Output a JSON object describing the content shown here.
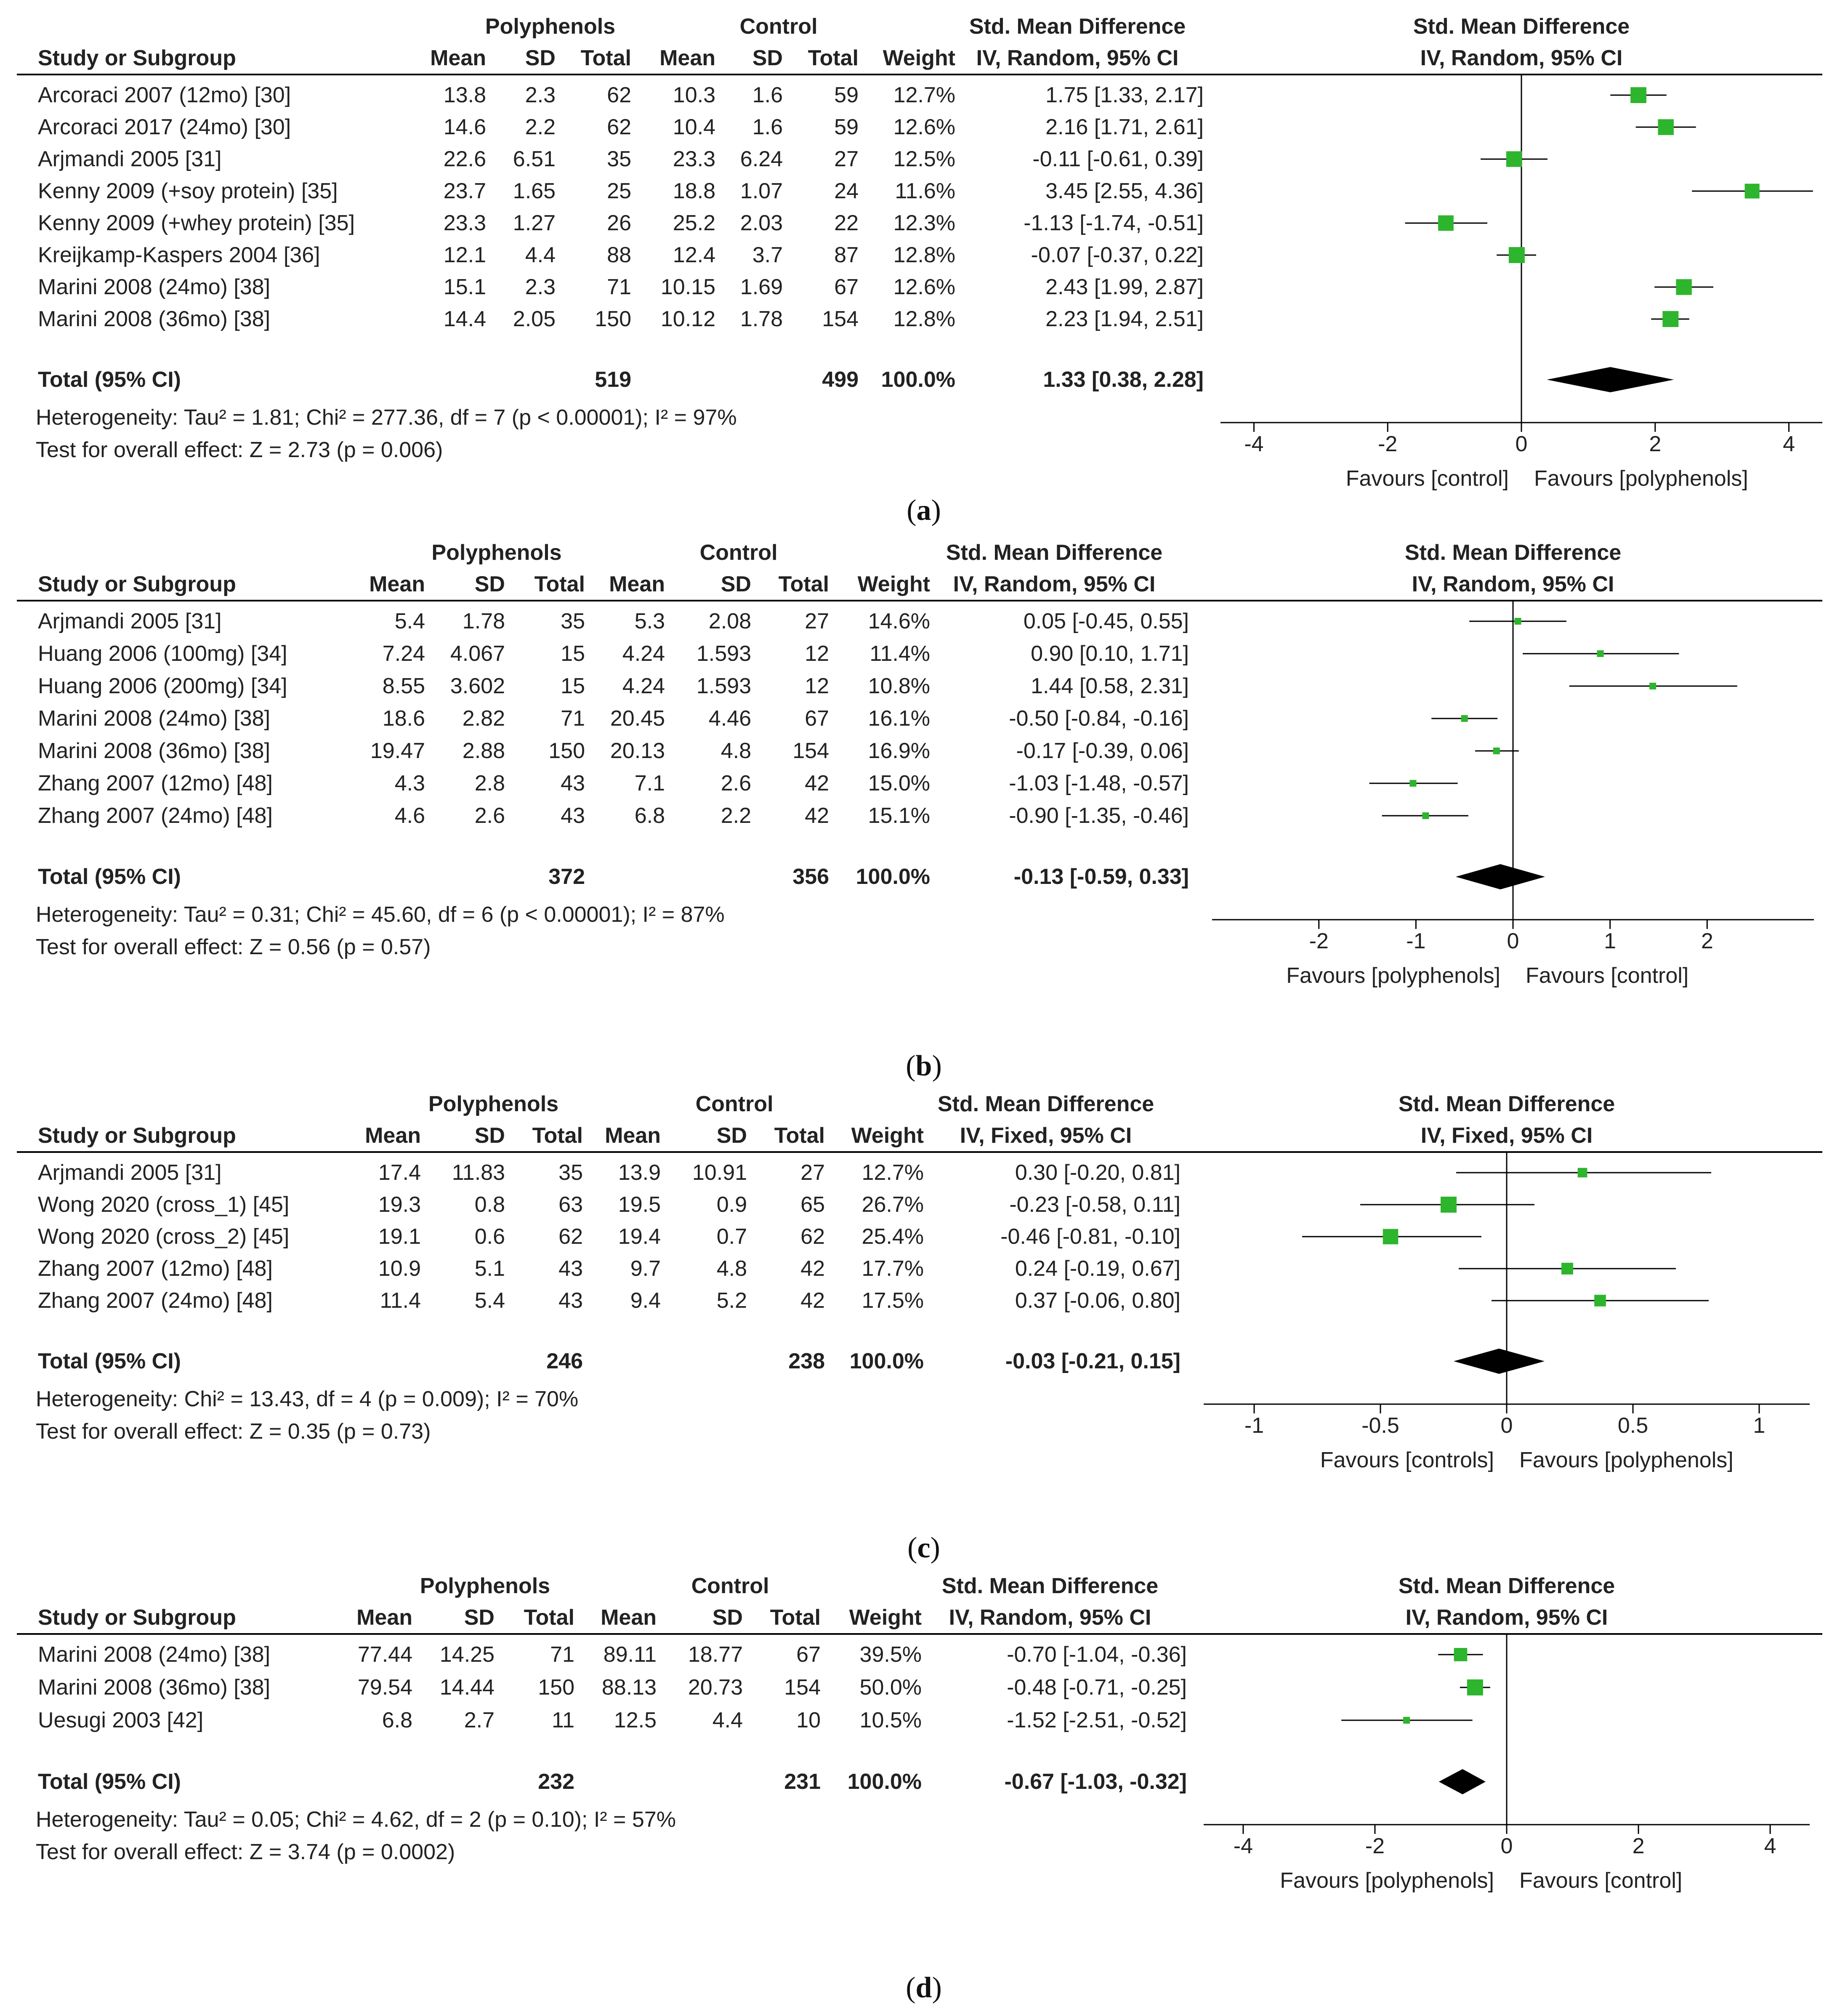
{
  "chart_data": [
    {
      "type": "forest",
      "panel": "a",
      "caption_open": "(",
      "caption_letter": "a",
      "caption_close": ")",
      "group_labels": {
        "experimental": "Polyphenols",
        "control": "Control"
      },
      "col_headers": {
        "study": "Study or Subgroup",
        "mean": "Mean",
        "sd": "SD",
        "total": "Total",
        "weight": "Weight",
        "effect_title": "Std. Mean Difference",
        "effect_method": "IV, Random, 95% CI"
      },
      "studies": [
        {
          "study": "Arcoraci 2007 (12mo) [30]",
          "e_mean": "13.8",
          "e_sd": "2.3",
          "e_total": "62",
          "c_mean": "10.3",
          "c_sd": "1.6",
          "c_total": "59",
          "weight": "12.7%",
          "ci_text": "1.75 [1.33, 2.17]",
          "est": 1.75,
          "lo": 1.33,
          "hi": 2.17
        },
        {
          "study": "Arcoraci 2017 (24mo) [30]",
          "e_mean": "14.6",
          "e_sd": "2.2",
          "e_total": "62",
          "c_mean": "10.4",
          "c_sd": "1.6",
          "c_total": "59",
          "weight": "12.6%",
          "ci_text": "2.16 [1.71, 2.61]",
          "est": 2.16,
          "lo": 1.71,
          "hi": 2.61
        },
        {
          "study": "Arjmandi 2005 [31]",
          "e_mean": "22.6",
          "e_sd": "6.51",
          "e_total": "35",
          "c_mean": "23.3",
          "c_sd": "6.24",
          "c_total": "27",
          "weight": "12.5%",
          "ci_text": "-0.11 [-0.61, 0.39]",
          "est": -0.11,
          "lo": -0.61,
          "hi": 0.39
        },
        {
          "study": "Kenny 2009 (+soy protein) [35]",
          "e_mean": "23.7",
          "e_sd": "1.65",
          "e_total": "25",
          "c_mean": "18.8",
          "c_sd": "1.07",
          "c_total": "24",
          "weight": "11.6%",
          "ci_text": "3.45 [2.55, 4.36]",
          "est": 3.45,
          "lo": 2.55,
          "hi": 4.36
        },
        {
          "study": "Kenny 2009 (+whey protein) [35]",
          "e_mean": "23.3",
          "e_sd": "1.27",
          "e_total": "26",
          "c_mean": "25.2",
          "c_sd": "2.03",
          "c_total": "22",
          "weight": "12.3%",
          "ci_text": "-1.13 [-1.74, -0.51]",
          "est": -1.13,
          "lo": -1.74,
          "hi": -0.51
        },
        {
          "study": "Kreijkamp-Kaspers 2004 [36]",
          "e_mean": "12.1",
          "e_sd": "4.4",
          "e_total": "88",
          "c_mean": "12.4",
          "c_sd": "3.7",
          "c_total": "87",
          "weight": "12.8%",
          "ci_text": "-0.07 [-0.37, 0.22]",
          "est": -0.07,
          "lo": -0.37,
          "hi": 0.22
        },
        {
          "study": "Marini 2008 (24mo) [38]",
          "e_mean": "15.1",
          "e_sd": "2.3",
          "e_total": "71",
          "c_mean": "10.15",
          "c_sd": "1.69",
          "c_total": "67",
          "weight": "12.6%",
          "ci_text": "2.43 [1.99, 2.87]",
          "est": 2.43,
          "lo": 1.99,
          "hi": 2.87
        },
        {
          "study": "Marini 2008 (36mo) [38]",
          "e_mean": "14.4",
          "e_sd": "2.05",
          "e_total": "150",
          "c_mean": "10.12",
          "c_sd": "1.78",
          "c_total": "154",
          "weight": "12.8%",
          "ci_text": "2.23 [1.94, 2.51]",
          "est": 2.23,
          "lo": 1.94,
          "hi": 2.51
        }
      ],
      "total": {
        "label": "Total (95% CI)",
        "e_total": "519",
        "c_total": "499",
        "weight": "100.0%",
        "ci_text": "1.33 [0.38, 2.28]",
        "est": 1.33,
        "lo": 0.38,
        "hi": 2.28
      },
      "heterogeneity": "Heterogeneity: Tau² = 1.81; Chi² = 277.36, df = 7 (p < 0.00001); I² = 97%",
      "overall_test": "Test for overall effect: Z = 2.73 (p = 0.006)",
      "xlim": [
        -4.5,
        4.5
      ],
      "ticks": [
        -4,
        -2,
        0,
        2,
        4
      ],
      "tick_labels": [
        "-4",
        "-2",
        "0",
        "2",
        "4"
      ],
      "favours_left": "Favours [control]",
      "favours_right": "Favours [polyphenols]",
      "square_sizes_by_weight": true
    },
    {
      "type": "forest",
      "panel": "b",
      "caption_open": "(",
      "caption_letter": "b",
      "caption_close": ")",
      "group_labels": {
        "experimental": "Polyphenols",
        "control": "Control"
      },
      "col_headers": {
        "study": "Study or Subgroup",
        "mean": "Mean",
        "sd": "SD",
        "total": "Total",
        "weight": "Weight",
        "effect_title": "Std. Mean Difference",
        "effect_method": "IV, Random, 95% CI"
      },
      "studies": [
        {
          "study": "Arjmandi 2005 [31]",
          "e_mean": "5.4",
          "e_sd": "1.78",
          "e_total": "35",
          "c_mean": "5.3",
          "c_sd": "2.08",
          "c_total": "27",
          "weight": "14.6%",
          "ci_text": "0.05 [-0.45, 0.55]",
          "est": 0.05,
          "lo": -0.45,
          "hi": 0.55
        },
        {
          "study": "Huang 2006 (100mg) [34]",
          "e_mean": "7.24",
          "e_sd": "4.067",
          "e_total": "15",
          "c_mean": "4.24",
          "c_sd": "1.593",
          "c_total": "12",
          "weight": "11.4%",
          "ci_text": "0.90 [0.10, 1.71]",
          "est": 0.9,
          "lo": 0.1,
          "hi": 1.71
        },
        {
          "study": "Huang 2006 (200mg) [34]",
          "e_mean": "8.55",
          "e_sd": "3.602",
          "e_total": "15",
          "c_mean": "4.24",
          "c_sd": "1.593",
          "c_total": "12",
          "weight": "10.8%",
          "ci_text": "1.44 [0.58, 2.31]",
          "est": 1.44,
          "lo": 0.58,
          "hi": 2.31
        },
        {
          "study": "Marini 2008 (24mo) [38]",
          "e_mean": "18.6",
          "e_sd": "2.82",
          "e_total": "71",
          "c_mean": "20.45",
          "c_sd": "4.46",
          "c_total": "67",
          "weight": "16.1%",
          "ci_text": "-0.50 [-0.84, -0.16]",
          "est": -0.5,
          "lo": -0.84,
          "hi": -0.16
        },
        {
          "study": "Marini 2008 (36mo) [38]",
          "e_mean": "19.47",
          "e_sd": "2.88",
          "e_total": "150",
          "c_mean": "20.13",
          "c_sd": "4.8",
          "c_total": "154",
          "weight": "16.9%",
          "ci_text": "-0.17 [-0.39, 0.06]",
          "est": -0.17,
          "lo": -0.39,
          "hi": 0.06
        },
        {
          "study": "Zhang 2007 (12mo) [48]",
          "e_mean": "4.3",
          "e_sd": "2.8",
          "e_total": "43",
          "c_mean": "7.1",
          "c_sd": "2.6",
          "c_total": "42",
          "weight": "15.0%",
          "ci_text": "-1.03 [-1.48, -0.57]",
          "est": -1.03,
          "lo": -1.48,
          "hi": -0.57
        },
        {
          "study": "Zhang 2007 (24mo) [48]",
          "e_mean": "4.6",
          "e_sd": "2.6",
          "e_total": "43",
          "c_mean": "6.8",
          "c_sd": "2.2",
          "c_total": "42",
          "weight": "15.1%",
          "ci_text": "-0.90 [-1.35, -0.46]",
          "est": -0.9,
          "lo": -1.35,
          "hi": -0.46
        }
      ],
      "total": {
        "label": "Total (95% CI)",
        "e_total": "372",
        "c_total": "356",
        "weight": "100.0%",
        "ci_text": "-0.13 [-0.59, 0.33]",
        "est": -0.13,
        "lo": -0.59,
        "hi": 0.33
      },
      "heterogeneity": "Heterogeneity: Tau² = 0.31; Chi² = 45.60, df = 6 (p < 0.00001); I² = 87%",
      "overall_test": "Test for overall effect: Z = 0.56 (p = 0.57)",
      "xlim": [
        -3.1,
        3.1
      ],
      "ticks": [
        -2,
        -1,
        0,
        1,
        2
      ],
      "tick_labels": [
        "-2",
        "-1",
        "0",
        "1",
        "2"
      ],
      "favours_left": "Favours [polyphenols]",
      "favours_right": "Favours [control]",
      "square_sizes_by_weight": false
    },
    {
      "type": "forest",
      "panel": "c",
      "caption_open": "(",
      "caption_letter": "c",
      "caption_close": ")",
      "group_labels": {
        "experimental": "Polyphenols",
        "control": "Control"
      },
      "col_headers": {
        "study": "Study or Subgroup",
        "mean": "Mean",
        "sd": "SD",
        "total": "Total",
        "weight": "Weight",
        "effect_title": "Std. Mean Difference",
        "effect_method": "IV, Fixed, 95% CI"
      },
      "studies": [
        {
          "study": "Arjmandi 2005 [31]",
          "e_mean": "17.4",
          "e_sd": "11.83",
          "e_total": "35",
          "c_mean": "13.9",
          "c_sd": "10.91",
          "c_total": "27",
          "weight": "12.7%",
          "ci_text": "0.30 [-0.20, 0.81]",
          "est": 0.3,
          "lo": -0.2,
          "hi": 0.81
        },
        {
          "study": "Wong 2020 (cross_1) [45]",
          "e_mean": "19.3",
          "e_sd": "0.8",
          "e_total": "63",
          "c_mean": "19.5",
          "c_sd": "0.9",
          "c_total": "65",
          "weight": "26.7%",
          "ci_text": "-0.23 [-0.58, 0.11]",
          "est": -0.23,
          "lo": -0.58,
          "hi": 0.11
        },
        {
          "study": "Wong 2020 (cross_2) [45]",
          "e_mean": "19.1",
          "e_sd": "0.6",
          "e_total": "62",
          "c_mean": "19.4",
          "c_sd": "0.7",
          "c_total": "62",
          "weight": "25.4%",
          "ci_text": "-0.46 [-0.81, -0.10]",
          "est": -0.46,
          "lo": -0.81,
          "hi": -0.1
        },
        {
          "study": "Zhang 2007 (12mo) [48]",
          "e_mean": "10.9",
          "e_sd": "5.1",
          "e_total": "43",
          "c_mean": "9.7",
          "c_sd": "4.8",
          "c_total": "42",
          "weight": "17.7%",
          "ci_text": "0.24 [-0.19, 0.67]",
          "est": 0.24,
          "lo": -0.19,
          "hi": 0.67
        },
        {
          "study": "Zhang 2007 (24mo) [48]",
          "e_mean": "11.4",
          "e_sd": "5.4",
          "e_total": "43",
          "c_mean": "9.4",
          "c_sd": "5.2",
          "c_total": "42",
          "weight": "17.5%",
          "ci_text": "0.37 [-0.06, 0.80]",
          "est": 0.37,
          "lo": -0.06,
          "hi": 0.8
        }
      ],
      "total": {
        "label": "Total (95% CI)",
        "e_total": "246",
        "c_total": "238",
        "weight": "100.0%",
        "ci_text": "-0.03 [-0.21, 0.15]",
        "est": -0.03,
        "lo": -0.21,
        "hi": 0.15
      },
      "heterogeneity": "Heterogeneity: Chi² = 13.43, df = 4 (p = 0.009); I² = 70%",
      "overall_test": "Test for overall effect: Z = 0.35 (p = 0.73)",
      "xlim": [
        -1.2,
        1.2
      ],
      "ticks": [
        -1,
        -0.5,
        0,
        0.5,
        1
      ],
      "tick_labels": [
        "-1",
        "-0.5",
        "0",
        "0.5",
        "1"
      ],
      "favours_left": "Favours [controls]",
      "favours_right": "Favours [polyphenols]",
      "square_sizes_by_weight": true
    },
    {
      "type": "forest",
      "panel": "d",
      "caption_open": "(",
      "caption_letter": "d",
      "caption_close": ")",
      "group_labels": {
        "experimental": "Polyphenols",
        "control": "Control"
      },
      "col_headers": {
        "study": "Study or Subgroup",
        "mean": "Mean",
        "sd": "SD",
        "total": "Total",
        "weight": "Weight",
        "effect_title": "Std. Mean Difference",
        "effect_method": "IV, Random, 95% CI"
      },
      "studies": [
        {
          "study": "Marini 2008 (24mo) [38]",
          "e_mean": "77.44",
          "e_sd": "14.25",
          "e_total": "71",
          "c_mean": "89.11",
          "c_sd": "18.77",
          "c_total": "67",
          "weight": "39.5%",
          "ci_text": "-0.70 [-1.04, -0.36]",
          "est": -0.7,
          "lo": -1.04,
          "hi": -0.36
        },
        {
          "study": "Marini 2008 (36mo) [38]",
          "e_mean": "79.54",
          "e_sd": "14.44",
          "e_total": "150",
          "c_mean": "88.13",
          "c_sd": "20.73",
          "c_total": "154",
          "weight": "50.0%",
          "ci_text": "-0.48 [-0.71, -0.25]",
          "est": -0.48,
          "lo": -0.71,
          "hi": -0.25
        },
        {
          "study": "Uesugi 2003 [42]",
          "e_mean": "6.8",
          "e_sd": "2.7",
          "e_total": "11",
          "c_mean": "12.5",
          "c_sd": "4.4",
          "c_total": "10",
          "weight": "10.5%",
          "ci_text": "-1.52 [-2.51, -0.52]",
          "est": -1.52,
          "lo": -2.51,
          "hi": -0.52
        }
      ],
      "total": {
        "label": "Total (95% CI)",
        "e_total": "232",
        "c_total": "231",
        "weight": "100.0%",
        "ci_text": "-0.67 [-1.03, -0.32]",
        "est": -0.67,
        "lo": -1.03,
        "hi": -0.32
      },
      "heterogeneity": "Heterogeneity: Tau² = 0.05; Chi² = 4.62, df = 2 (p = 0.10); I² = 57%",
      "overall_test": "Test for overall effect: Z = 3.74 (p = 0.0002)",
      "xlim": [
        -4.6,
        4.6
      ],
      "ticks": [
        -4,
        -2,
        0,
        2,
        4
      ],
      "tick_labels": [
        "-4",
        "-2",
        "0",
        "2",
        "4"
      ],
      "favours_left": "Favours [polyphenols]",
      "favours_right": "Favours [control]",
      "square_sizes_by_weight": true
    }
  ],
  "colors": {
    "marker": "#2db52d",
    "ci_line": "#000000",
    "diamond": "#000000",
    "text": "#222222",
    "rule": "#000000"
  }
}
